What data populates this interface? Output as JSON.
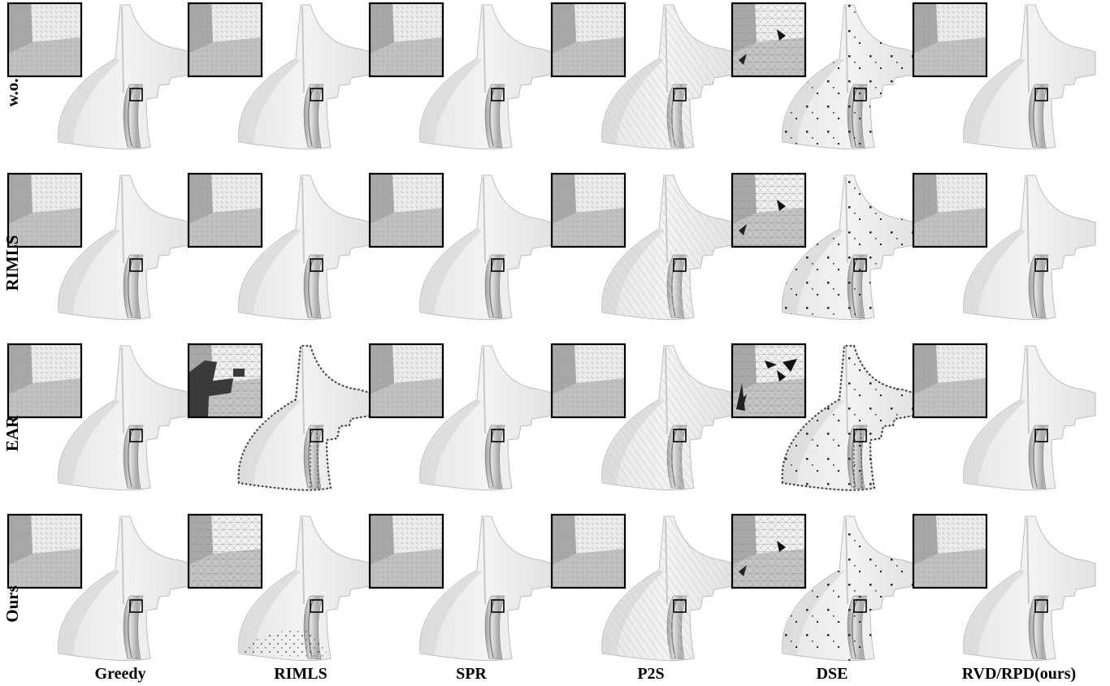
{
  "figure": {
    "row_labels": [
      "w.o.",
      "RIMLS",
      "EAR",
      "Ours"
    ],
    "col_labels": [
      "Greedy",
      "RIMLS",
      "SPR",
      "P2S",
      "DSE",
      "RVD/RPD(ours)"
    ]
  }
}
